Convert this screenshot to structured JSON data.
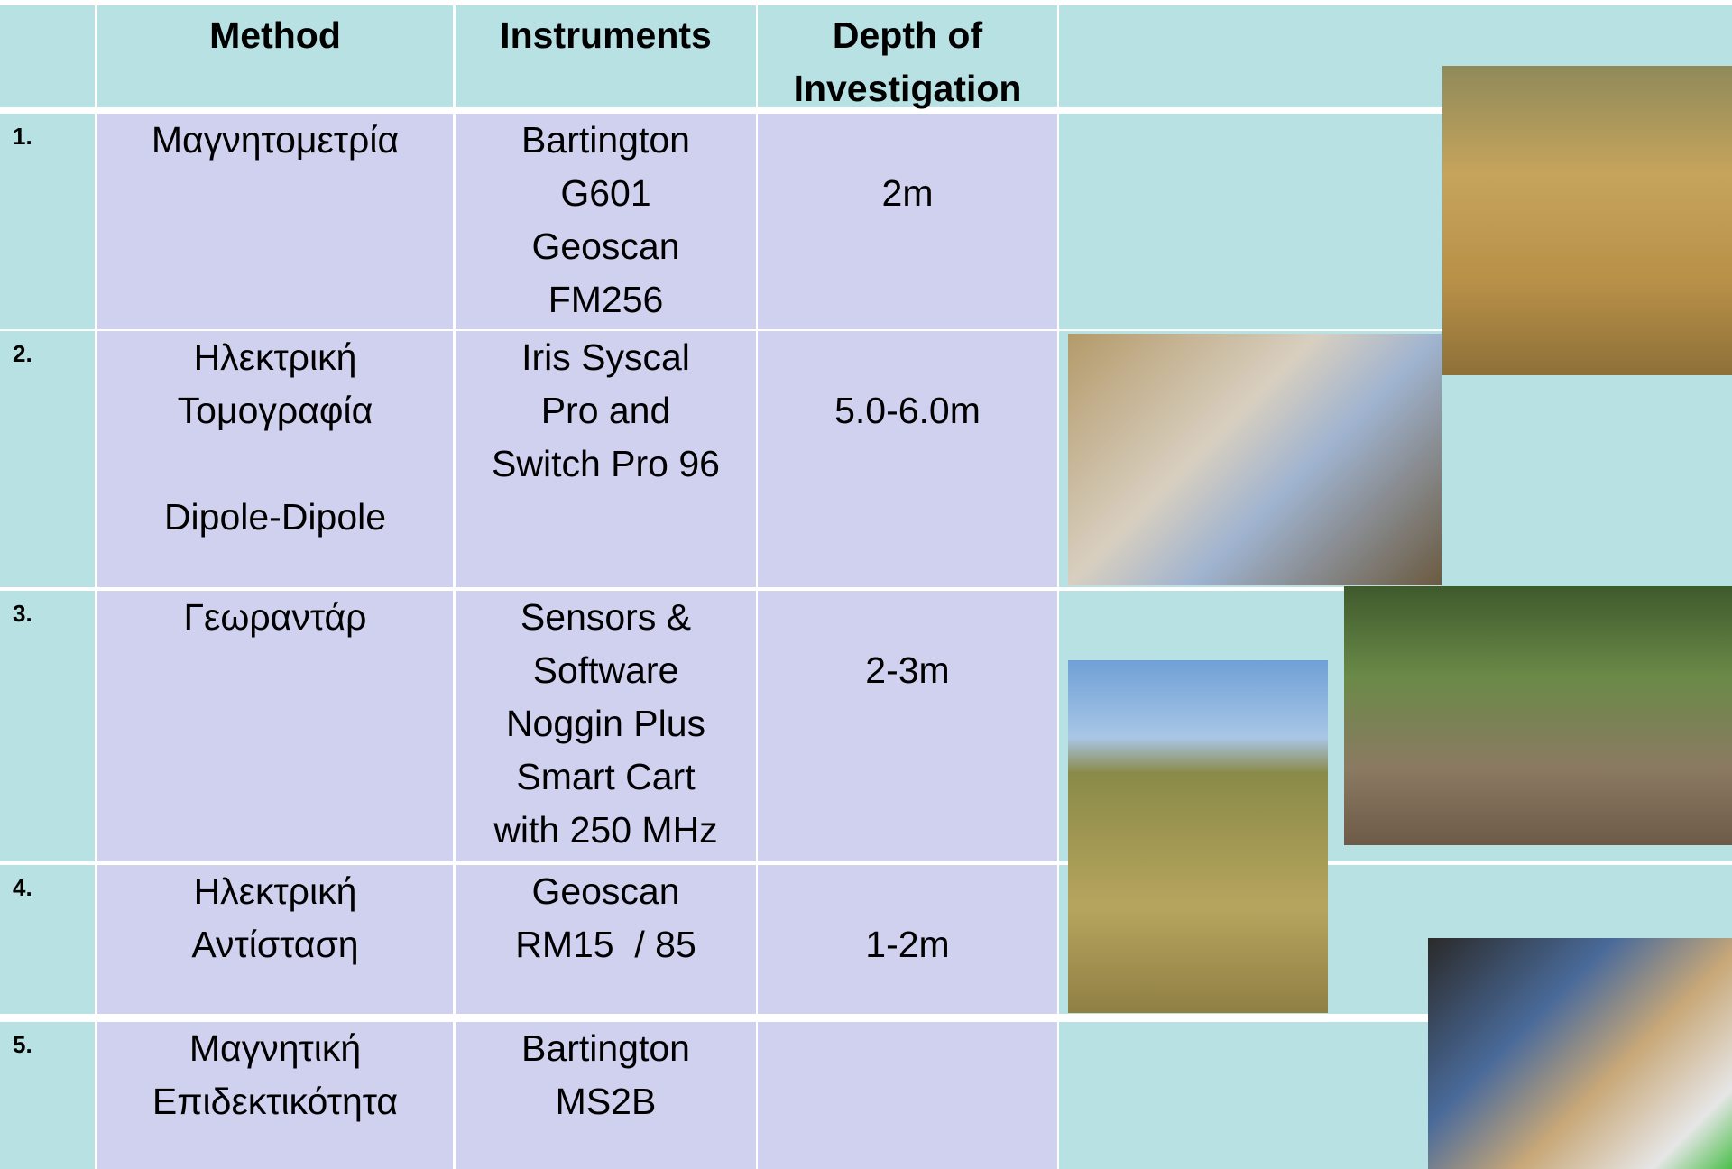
{
  "table": {
    "header": {
      "method": "Method",
      "instruments": "Instruments",
      "depth": [
        "Depth of",
        "Investigation"
      ]
    },
    "rows": [
      {
        "number": "1.",
        "method": [
          "Μαγνητομετρία"
        ],
        "instruments": [
          "Bartington",
          "G601",
          "Geoscan",
          "FM256"
        ],
        "depth": "2m"
      },
      {
        "number": "2.",
        "method": [
          "Ηλεκτρική",
          "Τομογραφία"
        ],
        "technique": "Dipole-Dipole",
        "instruments": [
          "Iris Syscal",
          "Pro and",
          "Switch Pro 96"
        ],
        "depth": "5.0-6.0m"
      },
      {
        "number": "3.",
        "method": [
          "Γεωραντάρ"
        ],
        "instruments": [
          "Sensors &",
          "Software",
          "Noggin Plus",
          "Smart Cart",
          "with 250 MHz"
        ],
        "depth": "2-3m"
      },
      {
        "number": "4.",
        "method": [
          "Ηλεκτρική",
          "Αντίσταση"
        ],
        "instruments": [
          "Geoscan",
          "RM15  / 85"
        ],
        "depth": "1-2m"
      },
      {
        "number": "5.",
        "method": [
          "Μαγνητική",
          "Επιδεκτικότητα"
        ],
        "instruments": [
          "Bartington",
          "MS2B"
        ]
      }
    ]
  }
}
